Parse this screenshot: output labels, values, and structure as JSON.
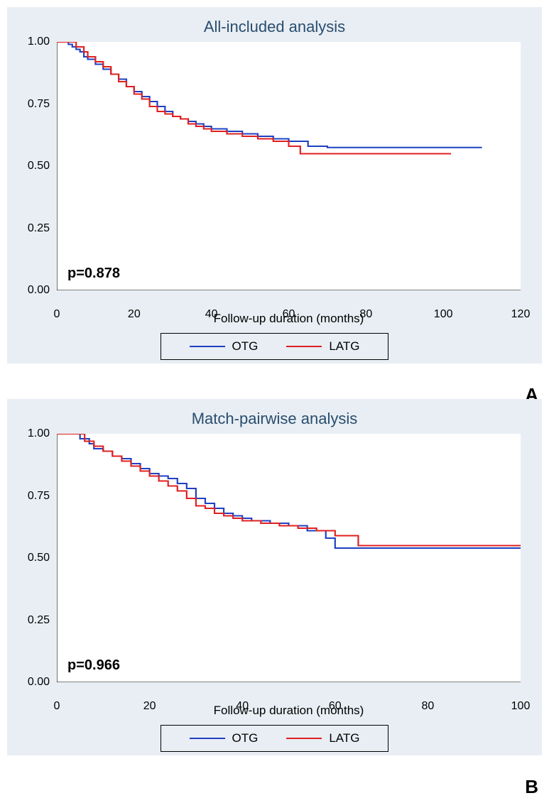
{
  "charts": [
    {
      "id": "chart-a",
      "title": "All-included analysis",
      "xlabel": "Follow-up duration (months)",
      "p_value": "p=0.878",
      "panel_label": "A",
      "xlim": [
        0,
        120
      ],
      "ylim": [
        0,
        1.0
      ],
      "xticks": [
        0,
        20,
        40,
        60,
        80,
        100,
        120
      ],
      "yticks": [
        "0.00",
        "0.25",
        "0.50",
        "0.75",
        "1.00"
      ],
      "ytick_values": [
        0,
        0.25,
        0.5,
        0.75,
        1.0
      ],
      "background_color": "#e8eef4",
      "plot_bg_color": "#ffffff",
      "series": [
        {
          "name": "OTG",
          "color": "#2040c0",
          "points": [
            [
              0,
              1.0
            ],
            [
              2,
              1.0
            ],
            [
              3,
              0.99
            ],
            [
              4,
              0.98
            ],
            [
              5,
              0.97
            ],
            [
              6,
              0.96
            ],
            [
              7,
              0.94
            ],
            [
              8,
              0.93
            ],
            [
              10,
              0.91
            ],
            [
              12,
              0.89
            ],
            [
              14,
              0.87
            ],
            [
              16,
              0.85
            ],
            [
              18,
              0.82
            ],
            [
              20,
              0.8
            ],
            [
              22,
              0.78
            ],
            [
              24,
              0.76
            ],
            [
              26,
              0.74
            ],
            [
              28,
              0.72
            ],
            [
              30,
              0.7
            ],
            [
              32,
              0.69
            ],
            [
              34,
              0.68
            ],
            [
              36,
              0.67
            ],
            [
              38,
              0.66
            ],
            [
              40,
              0.65
            ],
            [
              44,
              0.64
            ],
            [
              48,
              0.63
            ],
            [
              52,
              0.62
            ],
            [
              56,
              0.61
            ],
            [
              60,
              0.6
            ],
            [
              65,
              0.58
            ],
            [
              70,
              0.575
            ],
            [
              80,
              0.575
            ],
            [
              90,
              0.575
            ],
            [
              100,
              0.575
            ],
            [
              110,
              0.575
            ]
          ]
        },
        {
          "name": "LATG",
          "color": "#e02020",
          "points": [
            [
              0,
              1.0
            ],
            [
              3,
              1.0
            ],
            [
              5,
              0.98
            ],
            [
              7,
              0.96
            ],
            [
              8,
              0.94
            ],
            [
              10,
              0.92
            ],
            [
              12,
              0.9
            ],
            [
              14,
              0.87
            ],
            [
              16,
              0.84
            ],
            [
              18,
              0.82
            ],
            [
              20,
              0.79
            ],
            [
              22,
              0.77
            ],
            [
              24,
              0.74
            ],
            [
              26,
              0.72
            ],
            [
              28,
              0.71
            ],
            [
              30,
              0.7
            ],
            [
              32,
              0.69
            ],
            [
              34,
              0.67
            ],
            [
              36,
              0.66
            ],
            [
              38,
              0.65
            ],
            [
              40,
              0.64
            ],
            [
              44,
              0.63
            ],
            [
              48,
              0.62
            ],
            [
              52,
              0.61
            ],
            [
              56,
              0.6
            ],
            [
              60,
              0.58
            ],
            [
              63,
              0.55
            ],
            [
              70,
              0.55
            ],
            [
              80,
              0.55
            ],
            [
              90,
              0.55
            ],
            [
              102,
              0.55
            ]
          ]
        }
      ],
      "legend": [
        {
          "label": "OTG",
          "color": "#2040c0"
        },
        {
          "label": "LATG",
          "color": "#e02020"
        }
      ]
    },
    {
      "id": "chart-b",
      "title": "Match-pairwise analysis",
      "xlabel": "Follow-up duration (months)",
      "p_value": "p=0.966",
      "panel_label": "B",
      "xlim": [
        0,
        100
      ],
      "ylim": [
        0,
        1.0
      ],
      "xticks": [
        0,
        20,
        40,
        60,
        80,
        100
      ],
      "yticks": [
        "0.00",
        "0.25",
        "0.50",
        "0.75",
        "1.00"
      ],
      "ytick_values": [
        0,
        0.25,
        0.5,
        0.75,
        1.0
      ],
      "background_color": "#e8eef4",
      "plot_bg_color": "#ffffff",
      "series": [
        {
          "name": "OTG",
          "color": "#2040c0",
          "points": [
            [
              0,
              1.0
            ],
            [
              3,
              1.0
            ],
            [
              5,
              0.98
            ],
            [
              7,
              0.96
            ],
            [
              8,
              0.94
            ],
            [
              10,
              0.93
            ],
            [
              12,
              0.91
            ],
            [
              14,
              0.9
            ],
            [
              16,
              0.88
            ],
            [
              18,
              0.86
            ],
            [
              20,
              0.84
            ],
            [
              22,
              0.83
            ],
            [
              24,
              0.82
            ],
            [
              26,
              0.8
            ],
            [
              28,
              0.78
            ],
            [
              30,
              0.74
            ],
            [
              32,
              0.72
            ],
            [
              34,
              0.7
            ],
            [
              36,
              0.68
            ],
            [
              38,
              0.67
            ],
            [
              40,
              0.66
            ],
            [
              42,
              0.65
            ],
            [
              46,
              0.64
            ],
            [
              50,
              0.63
            ],
            [
              54,
              0.61
            ],
            [
              58,
              0.58
            ],
            [
              60,
              0.54
            ],
            [
              62,
              0.54
            ],
            [
              66,
              0.54
            ],
            [
              70,
              0.54
            ],
            [
              80,
              0.54
            ],
            [
              92,
              0.54
            ],
            [
              102,
              0.54
            ]
          ]
        },
        {
          "name": "LATG",
          "color": "#e02020",
          "points": [
            [
              0,
              1.0
            ],
            [
              4,
              1.0
            ],
            [
              6,
              0.97
            ],
            [
              8,
              0.95
            ],
            [
              10,
              0.93
            ],
            [
              12,
              0.91
            ],
            [
              14,
              0.89
            ],
            [
              16,
              0.87
            ],
            [
              18,
              0.85
            ],
            [
              20,
              0.83
            ],
            [
              22,
              0.81
            ],
            [
              24,
              0.79
            ],
            [
              26,
              0.77
            ],
            [
              28,
              0.74
            ],
            [
              30,
              0.71
            ],
            [
              32,
              0.7
            ],
            [
              34,
              0.68
            ],
            [
              36,
              0.67
            ],
            [
              38,
              0.66
            ],
            [
              40,
              0.65
            ],
            [
              44,
              0.64
            ],
            [
              48,
              0.63
            ],
            [
              52,
              0.62
            ],
            [
              56,
              0.61
            ],
            [
              60,
              0.59
            ],
            [
              65,
              0.55
            ],
            [
              70,
              0.55
            ],
            [
              80,
              0.55
            ],
            [
              90,
              0.55
            ],
            [
              100,
              0.55
            ]
          ]
        }
      ],
      "legend": [
        {
          "label": "OTG",
          "color": "#2040c0"
        },
        {
          "label": "LATG",
          "color": "#e02020"
        }
      ]
    }
  ]
}
